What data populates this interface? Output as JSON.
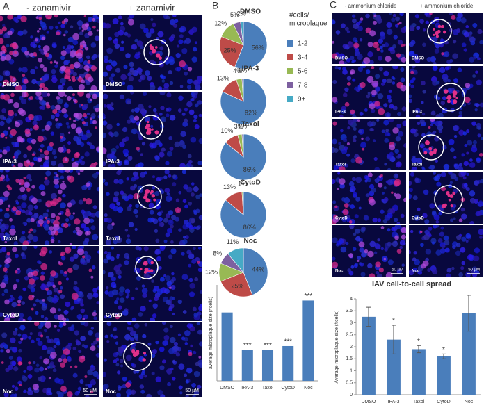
{
  "panel_a": {
    "label": "A",
    "col_titles": [
      "- zanamivir",
      "+ zanamivir"
    ],
    "row_labels": [
      "DMSO",
      "IPA-3",
      "Taxol",
      "CytoD",
      "Noc"
    ],
    "scale_bar": "50 µM"
  },
  "panel_b": {
    "label": "B"
  },
  "panel_c": {
    "label": "C",
    "col_titles": [
      "- ammonium chloride",
      "+ ammonium chloride"
    ],
    "row_labels": [
      "DMSO",
      "IPA-3",
      "Taxol",
      "CytoD",
      "Noc"
    ],
    "scale_bar": "50 µM"
  },
  "chart_data": [
    {
      "type": "pie",
      "title": "DMSO",
      "legend_title": [
        "#cells/",
        "microplaque"
      ],
      "categories": [
        "1-2",
        "3-4",
        "5-6",
        "7-8",
        "9+"
      ],
      "colors": [
        "#4a7ebb",
        "#be4b48",
        "#98b954",
        "#7d60a0",
        "#46aac5"
      ],
      "values": [
        56,
        25,
        12,
        5,
        2
      ],
      "value_labels": [
        "56%",
        "25%",
        "12%",
        "5%",
        "2%"
      ]
    },
    {
      "type": "pie",
      "title": "IPA-3",
      "values": [
        82,
        13,
        4,
        1,
        null
      ],
      "value_labels": [
        "82%",
        "13%",
        "4%",
        "1%",
        null
      ]
    },
    {
      "type": "pie",
      "title": "Taxol",
      "values": [
        86,
        10,
        3,
        1,
        null
      ],
      "value_labels": [
        "86%",
        "10%",
        "3%",
        "1%",
        null
      ]
    },
    {
      "type": "pie",
      "title": "CytoD",
      "values": [
        86,
        13,
        1,
        null,
        null
      ],
      "value_labels": [
        "86%",
        "13%",
        "1%",
        null,
        null
      ]
    },
    {
      "type": "pie",
      "title": "Noc",
      "values": [
        44,
        25,
        12,
        8,
        11
      ],
      "value_labels": [
        "44%",
        "25%",
        "12%",
        "8%",
        "11%"
      ]
    },
    {
      "type": "bar",
      "y_label": "average microplaque size (#cells)",
      "categories": [
        "DMSO",
        "IPA-3",
        "Taxol",
        "CytoD",
        "Noc"
      ],
      "values": [
        2.85,
        1.3,
        1.3,
        1.45,
        3.35
      ],
      "annotations": [
        null,
        "***",
        "***",
        "***",
        "***"
      ],
      "color": "#4a7ebb",
      "ylim": [
        0,
        4
      ]
    },
    {
      "type": "bar",
      "title": "IAV cell-to-cell spread",
      "y_label": "Average microplaque size (#cells)",
      "categories": [
        "DMSO",
        "IPA-3",
        "Taxol",
        "CytoD",
        "Noc"
      ],
      "values": [
        3.25,
        2.3,
        1.9,
        1.6,
        3.4
      ],
      "errors": [
        0.4,
        0.6,
        0.15,
        0.1,
        0.75
      ],
      "annotations": [
        null,
        "*",
        "*",
        "*",
        null
      ],
      "color": "#4a7ebb",
      "ylim": [
        0,
        4
      ],
      "yticks": [
        0,
        0.5,
        1,
        1.5,
        2,
        2.5,
        3,
        3.5,
        4
      ]
    }
  ]
}
